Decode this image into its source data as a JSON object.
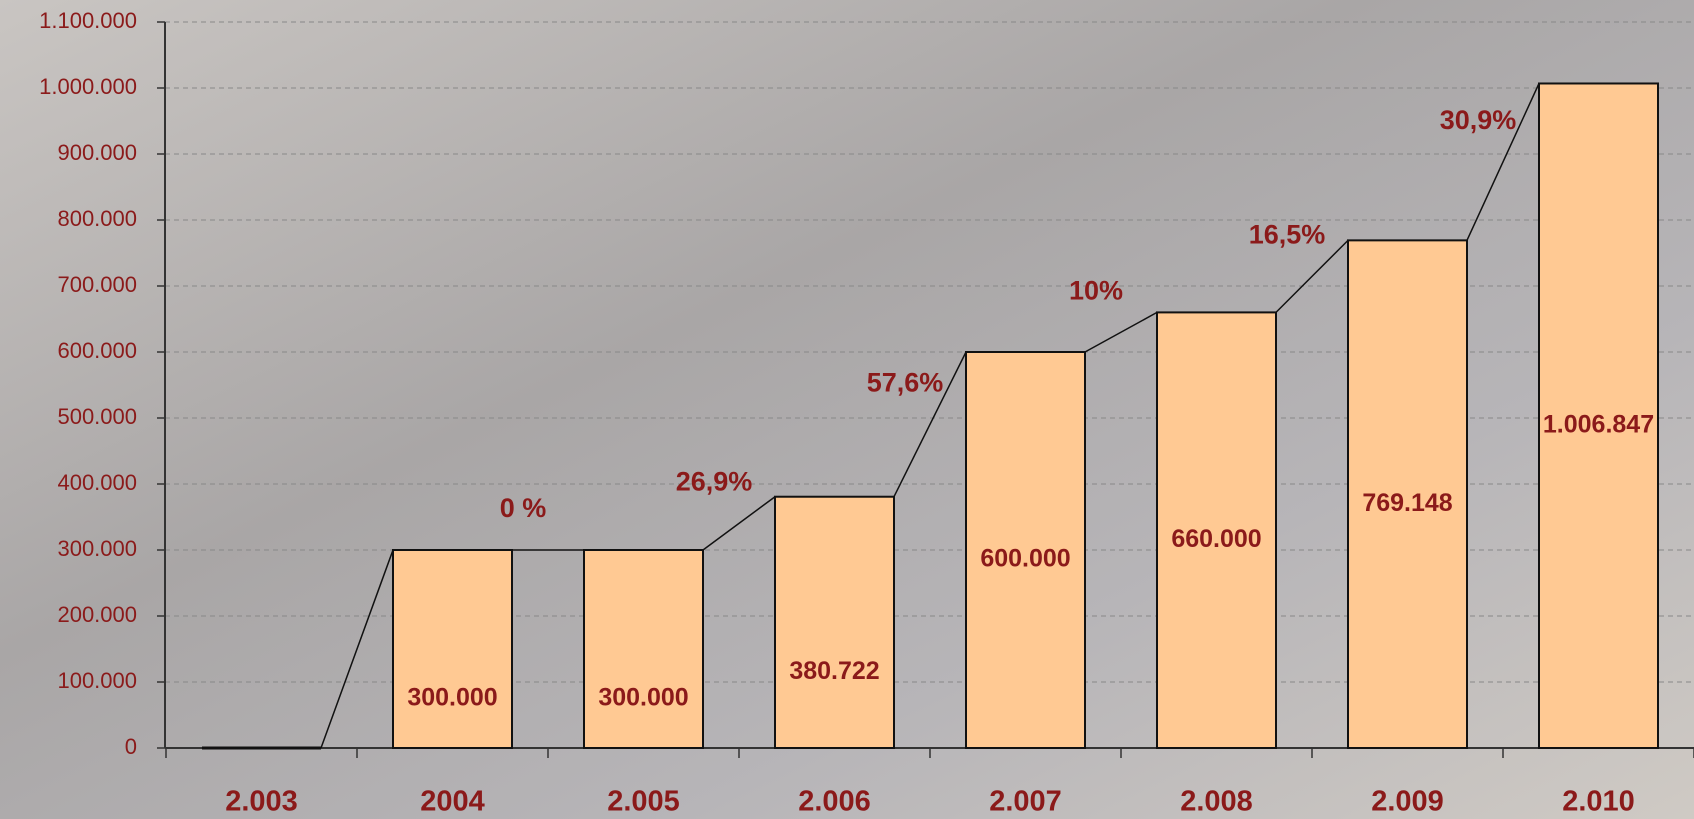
{
  "chart_data": {
    "type": "bar",
    "categories": [
      "2.003",
      "2004",
      "2.005",
      "2.006",
      "2.007",
      "2.008",
      "2.009",
      "2.010"
    ],
    "values": [
      0,
      300000,
      300000,
      380722,
      600000,
      660000,
      769148,
      1006847
    ],
    "value_labels": [
      null,
      "300.000",
      "300.000",
      "380.722",
      "600.000",
      "660.000",
      "769.148",
      "1.006.847"
    ],
    "annotations": [
      "0 %",
      "26,9%",
      "57,6%",
      "10%",
      "16,5%",
      "30,9%"
    ],
    "color": "#ffc993",
    "ylim": [
      0,
      1100000
    ],
    "yticks": [
      0,
      {
        "value": 100000,
        "label": "100.000"
      },
      {
        "value": 200000,
        "label": "200.000"
      },
      {
        "value": 300000,
        "label": "300.000"
      },
      {
        "value": 400000,
        "label": "400.000"
      },
      {
        "value": 500000,
        "label": "500.000"
      },
      {
        "value": 600000,
        "label": "600.000"
      },
      {
        "value": 700000,
        "label": "700.000"
      },
      {
        "value": 800000,
        "label": "800.000"
      },
      {
        "value": 900000,
        "label": "900.000"
      },
      {
        "value": 1000000,
        "label": "1.000.000"
      },
      {
        "value": 1100000,
        "label": "1.100.000"
      }
    ],
    "grid": true
  }
}
